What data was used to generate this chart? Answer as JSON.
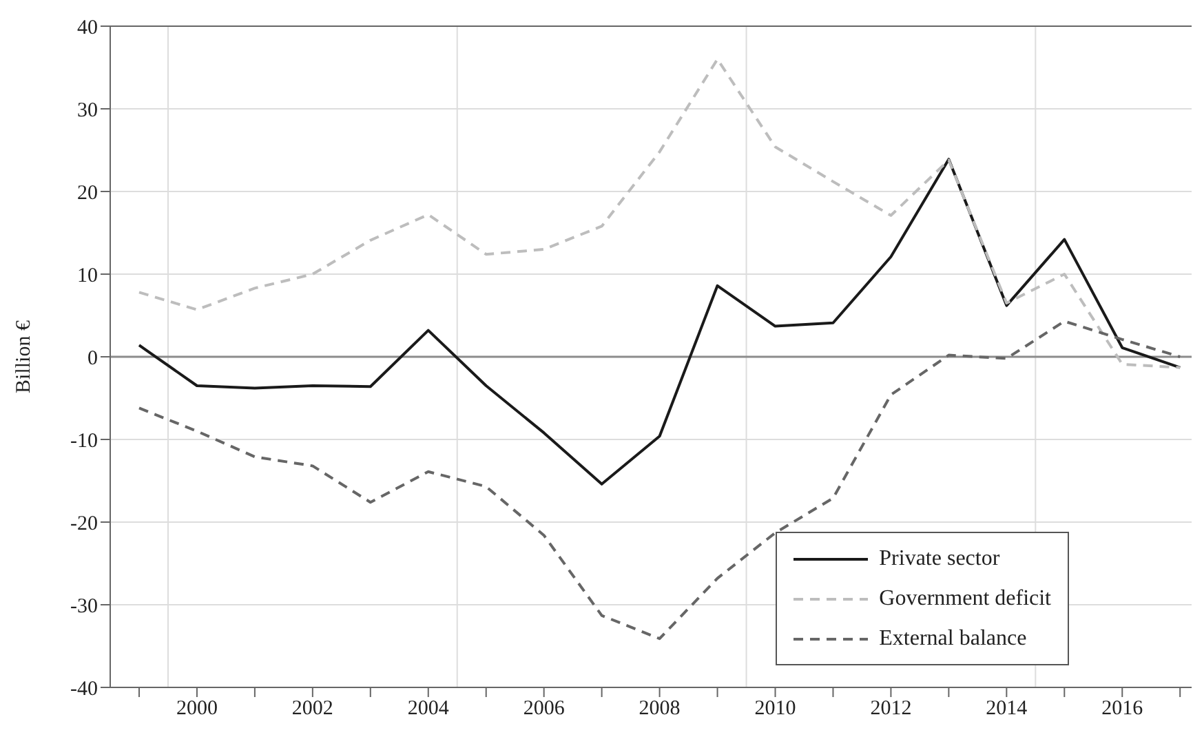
{
  "chart_data": {
    "type": "line",
    "ylabel": "Billion €",
    "categories": [
      null,
      "2000",
      null,
      "2002",
      null,
      "2004",
      null,
      "2006",
      null,
      "2008",
      null,
      "2010",
      null,
      "2012",
      null,
      "2014",
      null,
      "2016",
      null
    ],
    "series": [
      {
        "name": "Private sector",
        "color": "#1a1a1a",
        "line_style": "solid",
        "values": [
          1.4,
          -3.5,
          -3.8,
          -3.5,
          -3.6,
          3.2,
          -3.5,
          -9.2,
          -15.4,
          -9.6,
          8.6,
          3.7,
          4.1,
          12.1,
          23.9,
          6.2,
          14.2,
          1.1,
          -1.3
        ]
      },
      {
        "name": "Government deficit",
        "color": "#bdbdbd",
        "line_style": "dashed",
        "values": [
          7.8,
          5.7,
          8.3,
          10,
          14.1,
          17.2,
          12.4,
          13,
          15.8,
          24.8,
          36,
          25.4,
          21.2,
          17.1,
          23.8,
          6.5,
          10,
          -0.9,
          -1.3
        ]
      },
      {
        "name": "External balance",
        "color": "#666666",
        "line_style": "dashed",
        "values": [
          -6.2,
          -9,
          -12.1,
          -13.2,
          -17.6,
          -13.9,
          -15.7,
          -21.6,
          -31.3,
          -34.1,
          -26.8,
          -21.3,
          -17.1,
          -4.6,
          0.2,
          -0.2,
          4.3,
          2.1,
          0
        ]
      }
    ],
    "ylim": [
      -40,
      40
    ],
    "yticks": [
      -40,
      -30,
      -20,
      -10,
      0,
      10,
      20,
      30,
      40
    ],
    "ref_lines": [
      {
        "axis": "y",
        "value": 0,
        "color": "#8c8c8c"
      }
    ],
    "grid": true,
    "legend": "bottom right",
    "marker": "none"
  }
}
